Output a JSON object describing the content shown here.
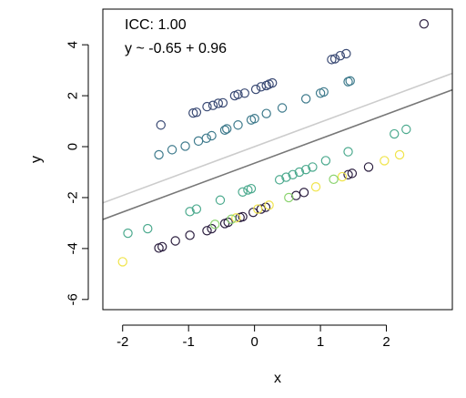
{
  "chart_data": {
    "type": "scatter",
    "xlabel": "x",
    "ylabel": "y",
    "xlim": [
      -2.3,
      3.0
    ],
    "ylim": [
      -6.4,
      5.4
    ],
    "xticks": [
      -2,
      -1,
      0,
      1,
      2
    ],
    "yticks": [
      -6,
      -4,
      -2,
      0,
      2,
      4
    ],
    "annotations": [
      "ICC: 1.00",
      "y ~ -0.65 + 0.96"
    ],
    "fit_lines": [
      {
        "intercept": -0.65,
        "slope": 0.96,
        "color": "#777777"
      },
      {
        "intercept": 0.0,
        "slope": 0.96,
        "color": "#cccccc"
      }
    ],
    "point_colors": [
      "#2b1e3f",
      "#3a4a74",
      "#3e7a8c",
      "#4caa8e",
      "#8bd36f",
      "#f0e44a"
    ],
    "points": [
      [
        -1.42,
        0.85,
        1
      ],
      [
        -0.93,
        1.32,
        1
      ],
      [
        -0.88,
        1.35,
        1
      ],
      [
        -0.72,
        1.57,
        1
      ],
      [
        -0.63,
        1.62,
        1
      ],
      [
        -0.55,
        1.7,
        1
      ],
      [
        -0.48,
        1.72,
        1
      ],
      [
        -0.3,
        2.0,
        1
      ],
      [
        -0.25,
        2.05,
        1
      ],
      [
        -0.15,
        2.1,
        1
      ],
      [
        0.02,
        2.25,
        1
      ],
      [
        0.1,
        2.35,
        1
      ],
      [
        0.18,
        2.4,
        1
      ],
      [
        0.22,
        2.45,
        1
      ],
      [
        0.27,
        2.5,
        1
      ],
      [
        1.17,
        3.42,
        1
      ],
      [
        1.22,
        3.45,
        1
      ],
      [
        1.3,
        3.57,
        1
      ],
      [
        1.39,
        3.65,
        1
      ],
      [
        2.57,
        4.82,
        0
      ],
      [
        -1.45,
        -0.32,
        2
      ],
      [
        -1.25,
        -0.12,
        2
      ],
      [
        -1.05,
        0.02,
        2
      ],
      [
        -0.85,
        0.22,
        2
      ],
      [
        -0.73,
        0.33,
        2
      ],
      [
        -0.65,
        0.43,
        2
      ],
      [
        -0.45,
        0.65,
        2
      ],
      [
        -0.42,
        0.7,
        2
      ],
      [
        -0.25,
        0.85,
        2
      ],
      [
        -0.05,
        1.05,
        2
      ],
      [
        0.0,
        1.1,
        2
      ],
      [
        0.18,
        1.3,
        2
      ],
      [
        0.42,
        1.52,
        2
      ],
      [
        0.78,
        1.88,
        2
      ],
      [
        1.0,
        2.1,
        2
      ],
      [
        1.05,
        2.15,
        2
      ],
      [
        1.42,
        2.55,
        2
      ],
      [
        1.45,
        2.58,
        2
      ],
      [
        -1.92,
        -3.4,
        3
      ],
      [
        -1.62,
        -3.22,
        3
      ],
      [
        -0.98,
        -2.55,
        3
      ],
      [
        -0.88,
        -2.45,
        3
      ],
      [
        -0.52,
        -2.1,
        3
      ],
      [
        -0.18,
        -1.78,
        3
      ],
      [
        -0.1,
        -1.7,
        3
      ],
      [
        -0.05,
        -1.65,
        3
      ],
      [
        0.38,
        -1.3,
        3
      ],
      [
        0.48,
        -1.2,
        3
      ],
      [
        0.58,
        -1.1,
        3
      ],
      [
        0.68,
        -1.0,
        3
      ],
      [
        0.78,
        -0.9,
        3
      ],
      [
        0.88,
        -0.8,
        3
      ],
      [
        1.08,
        -0.55,
        3
      ],
      [
        1.42,
        -0.2,
        3
      ],
      [
        2.12,
        0.5,
        3
      ],
      [
        2.3,
        0.68,
        3
      ],
      [
        -1.45,
        -3.98,
        0
      ],
      [
        -1.4,
        -3.93,
        0
      ],
      [
        -1.2,
        -3.7,
        0
      ],
      [
        -0.98,
        -3.48,
        0
      ],
      [
        -0.72,
        -3.3,
        0
      ],
      [
        -0.65,
        -3.22,
        0
      ],
      [
        -0.45,
        -3.02,
        0
      ],
      [
        -0.4,
        -2.97,
        0
      ],
      [
        -0.22,
        -2.78,
        0
      ],
      [
        -0.18,
        -2.75,
        0
      ],
      [
        -0.02,
        -2.58,
        0
      ],
      [
        0.1,
        -2.45,
        0
      ],
      [
        0.17,
        -2.38,
        0
      ],
      [
        0.63,
        -1.92,
        0
      ],
      [
        0.75,
        -1.8,
        0
      ],
      [
        1.42,
        -1.1,
        0
      ],
      [
        1.48,
        -1.05,
        0
      ],
      [
        1.73,
        -0.8,
        0
      ],
      [
        -2.0,
        -4.52,
        5
      ],
      [
        -0.28,
        -2.8,
        5
      ],
      [
        0.05,
        -2.45,
        5
      ],
      [
        0.22,
        -2.3,
        5
      ],
      [
        0.93,
        -1.58,
        5
      ],
      [
        1.33,
        -1.18,
        5
      ],
      [
        1.97,
        -0.55,
        5
      ],
      [
        2.2,
        -0.32,
        5
      ],
      [
        -0.6,
        -3.05,
        4
      ],
      [
        -0.35,
        -2.85,
        4
      ],
      [
        0.52,
        -2.0,
        4
      ],
      [
        1.2,
        -1.28,
        4
      ]
    ]
  }
}
